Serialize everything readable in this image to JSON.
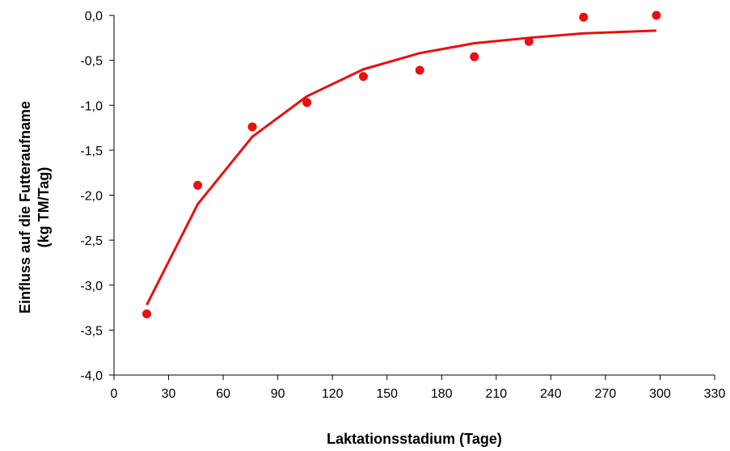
{
  "chart_data": {
    "type": "scatter",
    "title": "",
    "xlabel": "Laktationsstadium (Tage)",
    "ylabel_line1": "Einfluss auf die Futteraufname",
    "ylabel_line2": "(kg TM/Tag)",
    "xlim": [
      0,
      330
    ],
    "ylim": [
      -4.0,
      0.0
    ],
    "x_ticks": [
      0,
      30,
      60,
      90,
      120,
      150,
      180,
      210,
      240,
      270,
      300,
      330
    ],
    "x_tick_labels": [
      "0",
      "30",
      "60",
      "90",
      "120",
      "150",
      "180",
      "210",
      "240",
      "270",
      "300",
      "330"
    ],
    "y_ticks": [
      0.0,
      -0.5,
      -1.0,
      -1.5,
      -2.0,
      -2.5,
      -3.0,
      -3.5,
      -4.0
    ],
    "y_tick_labels": [
      "0,0",
      "-0,5",
      "-1,0",
      "-1,5",
      "-2,0",
      "-2,5",
      "-3,0",
      "-3,5",
      "-4,0"
    ],
    "grid": false,
    "legend": "none",
    "color": "#e81010",
    "series": [
      {
        "kind": "points",
        "x": [
          18,
          46,
          76,
          106,
          137,
          168,
          198,
          228,
          258,
          298
        ],
        "y": [
          -3.32,
          -1.89,
          -1.24,
          -0.97,
          -0.68,
          -0.61,
          -0.46,
          -0.29,
          -0.02,
          0.0
        ]
      },
      {
        "kind": "line",
        "x": [
          18,
          46,
          76,
          106,
          137,
          168,
          198,
          228,
          258,
          298
        ],
        "y": [
          -3.22,
          -2.1,
          -1.35,
          -0.9,
          -0.6,
          -0.42,
          -0.31,
          -0.25,
          -0.2,
          -0.17
        ]
      }
    ]
  }
}
